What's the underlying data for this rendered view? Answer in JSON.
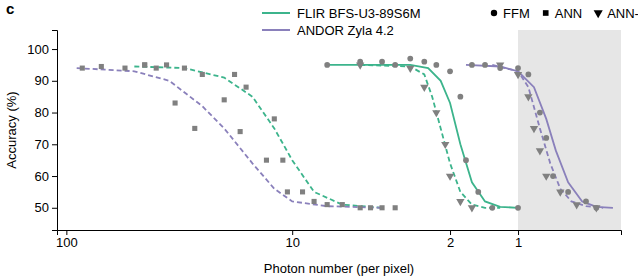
{
  "chart_data": {
    "type": "line",
    "panel_label": "c",
    "x_label": "Photon number (per pixel)",
    "y_label": "Accuracy (%)",
    "log": "x",
    "xlim": [
      110,
      0.35
    ],
    "xticks": [
      100,
      10,
      2,
      1
    ],
    "ylim": [
      43,
      106
    ],
    "yticks": [
      50,
      60,
      70,
      80,
      90,
      100
    ],
    "shaded_range": [
      1,
      0.35
    ],
    "series": [
      {
        "name": "FLIR BFS-U3-89S6M",
        "method": "ANN",
        "type": "line",
        "color": "#3cb48c",
        "line_style": "dashed",
        "x": [
          50,
          30,
          20,
          15,
          12,
          10,
          8,
          6,
          4
        ],
        "values": [
          94.5,
          94,
          91,
          85,
          75,
          65,
          55,
          51,
          50
        ]
      },
      {
        "name": "ANDOR Zyla 4.2",
        "method": "ANN",
        "type": "line",
        "color": "#8a80bb",
        "line_style": "dashed",
        "x": [
          90,
          50,
          35,
          25,
          20,
          15,
          12,
          10,
          7,
          4
        ],
        "values": [
          94,
          93,
          90,
          82,
          75,
          64,
          56,
          52,
          50.5,
          50
        ]
      },
      {
        "name": "FLIR BFS-U3-89S6M",
        "method": "FFM",
        "type": "line",
        "color": "#3cb48c",
        "line_style": "solid",
        "x": [
          7,
          3,
          2.5,
          2.2,
          2,
          1.8,
          1.6,
          1.4,
          1.2,
          1
        ],
        "values": [
          95,
          95,
          94,
          90,
          83,
          70,
          58,
          52,
          50.3,
          50
        ]
      },
      {
        "name": "FLIR BFS-U3-89S6M",
        "method": "ANN-t",
        "type": "line",
        "color": "#3cb48c",
        "line_style": "dashed",
        "x": [
          5,
          3,
          2.6,
          2.4,
          2.2,
          2,
          1.8,
          1.6,
          1.4,
          1.2
        ],
        "values": [
          95,
          94.5,
          92,
          85,
          75,
          64,
          55,
          51,
          50,
          50
        ]
      },
      {
        "name": "ANDOR Zyla 4.2",
        "method": "FFM",
        "type": "line",
        "color": "#8a80bb",
        "line_style": "solid",
        "x": [
          1.7,
          1.2,
          1,
          0.85,
          0.75,
          0.68,
          0.6,
          0.52,
          0.45,
          0.38
        ],
        "values": [
          95,
          94.5,
          93,
          88,
          78,
          68,
          58,
          52,
          50.3,
          50
        ]
      },
      {
        "name": "ANDOR Zyla 4.2",
        "method": "ANN-t",
        "type": "line",
        "color": "#8a80bb",
        "line_style": "dashed",
        "x": [
          1.3,
          1,
          0.9,
          0.8,
          0.72,
          0.65,
          0.58,
          0.5,
          0.42
        ],
        "values": [
          95,
          93,
          88,
          75,
          64,
          56,
          52,
          50.5,
          50
        ]
      },
      {
        "name": "FLIR BFS-U3-89S6M",
        "method": "FFM",
        "type": "scatter",
        "color": "#808080",
        "marker": "circle",
        "x": [
          7,
          5,
          4,
          3.5,
          3,
          2.6,
          2.3,
          2,
          1.8,
          1.7,
          1.5,
          1.3,
          1
        ],
        "values": [
          95,
          96,
          96,
          95,
          97,
          96,
          95,
          93,
          85,
          65,
          55,
          50,
          50
        ]
      },
      {
        "name": "ANDOR Zyla 4.2",
        "method": "FFM",
        "type": "scatter",
        "color": "#808080",
        "marker": "circle",
        "x": [
          1.6,
          1.4,
          1.2,
          1,
          0.9,
          0.8,
          0.75,
          0.7,
          0.6,
          0.5,
          0.45
        ],
        "values": [
          95,
          95,
          94,
          94,
          92,
          80,
          72,
          60,
          55,
          52,
          50
        ]
      },
      {
        "name": "FLIR BFS-U3-89S6M",
        "method": "ANN",
        "type": "scatter",
        "color": "#808080",
        "marker": "square",
        "x": [
          45,
          36,
          30,
          25,
          18,
          16,
          12,
          11,
          9,
          7,
          5,
          4
        ],
        "values": [
          95,
          95,
          94,
          92,
          92,
          88,
          78,
          65,
          55,
          51,
          50,
          50
        ]
      },
      {
        "name": "ANDOR Zyla 4.2",
        "method": "ANN",
        "type": "scatter",
        "color": "#808080",
        "marker": "square",
        "x": [
          85,
          70,
          55,
          45,
          40,
          33,
          27,
          20,
          17,
          13,
          10.5,
          8,
          6,
          4.5,
          3.5
        ],
        "values": [
          94,
          94.5,
          94,
          95,
          94,
          83,
          75,
          84,
          74,
          65,
          55,
          52,
          51,
          50,
          50
        ]
      },
      {
        "name": "FLIR BFS-U3-89S6M",
        "method": "ANN-t",
        "type": "scatter",
        "color": "#808080",
        "marker": "triangle-down",
        "x": [
          5,
          3,
          2.6,
          2.3,
          2.1,
          2,
          1.8,
          1.6
        ],
        "values": [
          95,
          94,
          88,
          80,
          70,
          60,
          52,
          50
        ]
      },
      {
        "name": "ANDOR Zyla 4.2",
        "method": "ANN-t",
        "type": "scatter",
        "color": "#808080",
        "marker": "triangle-down",
        "x": [
          1.2,
          1,
          0.9,
          0.85,
          0.8,
          0.75,
          0.65,
          0.55,
          0.45
        ],
        "values": [
          95,
          92,
          85,
          75,
          68,
          60,
          55,
          51,
          50
        ]
      }
    ]
  }
}
